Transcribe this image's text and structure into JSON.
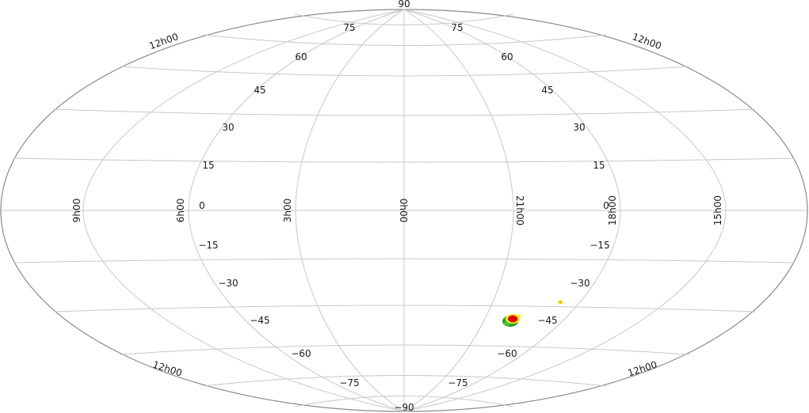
{
  "map": {
    "projection": "hammer-aitoff",
    "grid_color": "#c8c8c8",
    "border_color": "#8a8a8a",
    "poles": {
      "north": "90",
      "south": "−90"
    },
    "dec_labels_upper_left": [
      "75",
      "60",
      "45",
      "30",
      "15",
      "0"
    ],
    "dec_labels_upper_right": [
      "75",
      "60",
      "45",
      "30",
      "15",
      "0"
    ],
    "dec_labels_lower_left": [
      "−15",
      "−30",
      "−45",
      "−60",
      "−75"
    ],
    "dec_labels_lower_right": [
      "−15",
      "−30",
      "−45",
      "−60",
      "−75"
    ],
    "ra_meridian_labels": [
      "9h00",
      "6h00",
      "3h00",
      "0h00",
      "21h00",
      "18h00",
      "15h00"
    ],
    "ra_edge_labels": [
      "12h00",
      "12h00",
      "12h00",
      "12h00"
    ],
    "hotspots": [
      {
        "name": "main-blob",
        "colors": [
          "#228b22",
          "#ffff00",
          "#ff0000"
        ]
      },
      {
        "name": "small-blob",
        "colors": [
          "#ffff00",
          "#ff8c00"
        ]
      }
    ]
  }
}
